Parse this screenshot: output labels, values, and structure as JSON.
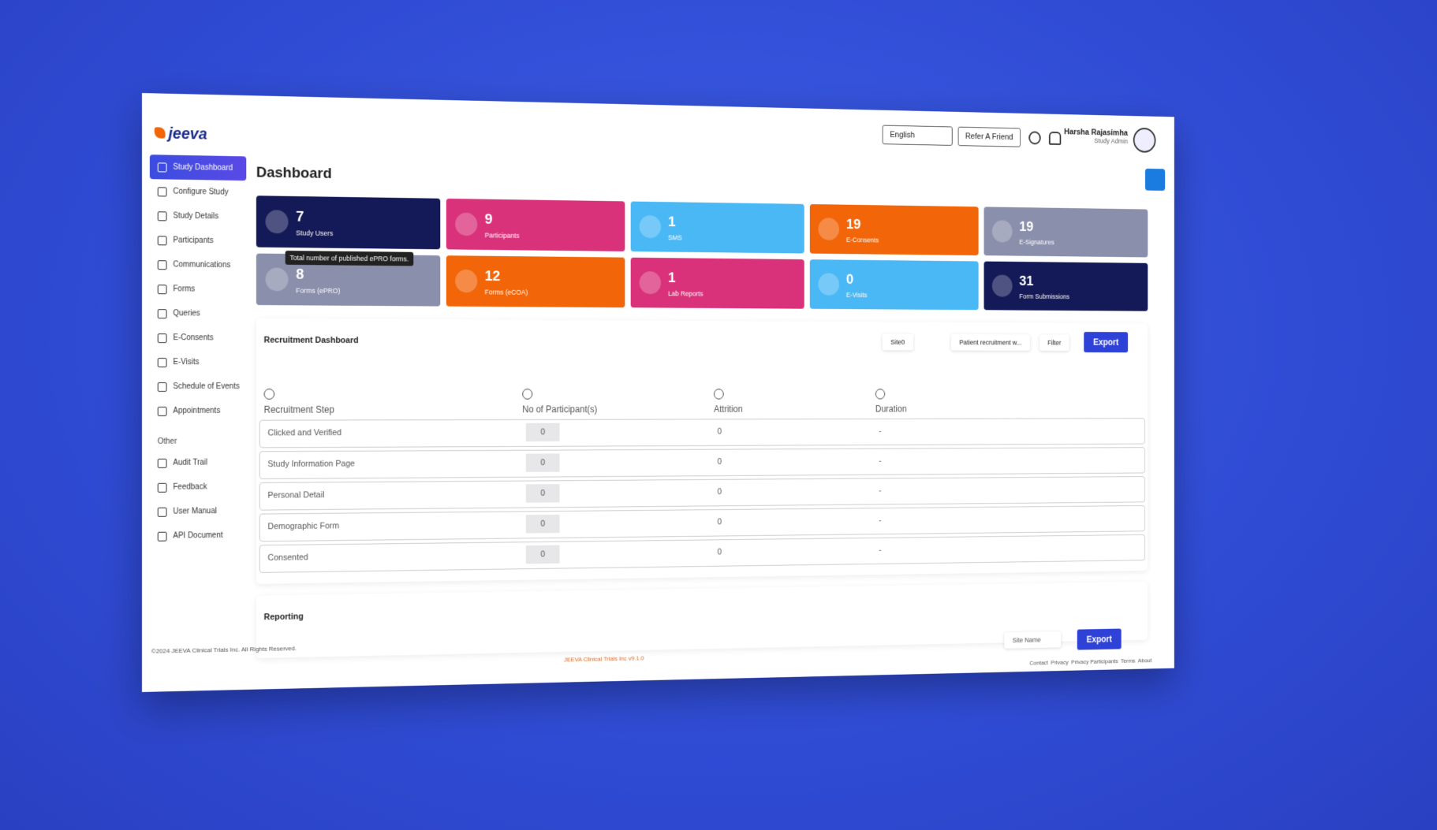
{
  "brand": "jeeva",
  "topbar": {
    "language": "English",
    "refer": "Refer A Friend",
    "user_name": "Harsha Rajasimha",
    "user_role": "Study Admin"
  },
  "sidebar": {
    "items": [
      "Study Dashboard",
      "Configure Study",
      "Study Details",
      "Participants",
      "Communications",
      "Forms",
      "Queries",
      "E-Consents",
      "E-Visits",
      "Schedule of Events",
      "Appointments"
    ],
    "other_heading": "Other",
    "other_items": [
      "Audit Trail",
      "Feedback",
      "User Manual",
      "API Document"
    ]
  },
  "page_title": "Dashboard",
  "cards": [
    {
      "value": 7,
      "label": "Study Users",
      "color": "#141a57"
    },
    {
      "value": 9,
      "label": "Participants",
      "color": "#d9317a"
    },
    {
      "value": 1,
      "label": "SMS",
      "color": "#4ab8f5"
    },
    {
      "value": 19,
      "label": "E-Consents",
      "color": "#f26508"
    },
    {
      "value": 19,
      "label": "E-Signatures",
      "color": "#8a8fab"
    },
    {
      "value": 8,
      "label": "Forms (ePRO)",
      "color": "#8a8fab"
    },
    {
      "value": 12,
      "label": "Forms (eCOA)",
      "color": "#f26508"
    },
    {
      "value": 1,
      "label": "Lab Reports",
      "color": "#d9317a"
    },
    {
      "value": 0,
      "label": "E-Visits",
      "color": "#4ab8f5"
    },
    {
      "value": 31,
      "label": "Form Submissions",
      "color": "#141a57"
    }
  ],
  "tooltip": "Total number of published ePRO forms.",
  "recruitment": {
    "title": "Recruitment Dashboard",
    "filters": [
      "Site0",
      "Patient recruitment w...",
      "Filter"
    ],
    "export": "Export",
    "columns": [
      "Recruitment Step",
      "No of Participant(s)",
      "Attrition",
      "Duration"
    ],
    "rows": [
      [
        "Clicked and Verified",
        0,
        0,
        "-"
      ],
      [
        "Study Information Page",
        0,
        0,
        "-"
      ],
      [
        "Personal Detail",
        0,
        0,
        "-"
      ],
      [
        "Demographic Form",
        0,
        0,
        "-"
      ],
      [
        "Consented",
        0,
        0,
        "-"
      ]
    ]
  },
  "reporting": {
    "title": "Reporting",
    "site": "Site Name",
    "export": "Export"
  },
  "footer": {
    "copyright": "©2024 JEEVA Clinical Trials Inc. All Rights Reserved.",
    "version": "JEEVA Clinical Trials Inc v9.1.0",
    "links": [
      "Contact",
      "Privacy",
      "Privacy Participants",
      "Terms",
      "About"
    ]
  }
}
